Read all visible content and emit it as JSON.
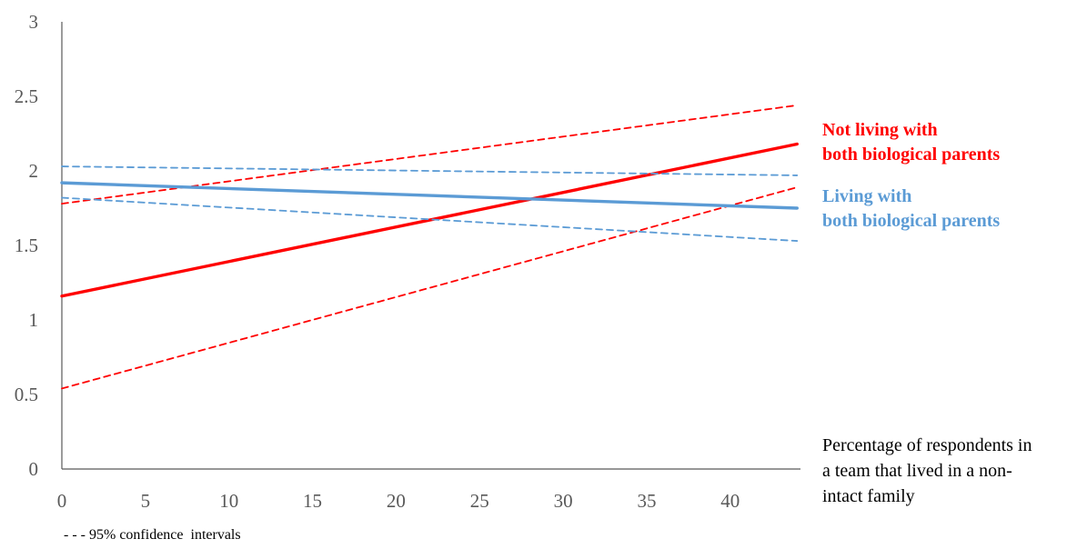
{
  "chart_data": {
    "type": "line",
    "title": "",
    "xlabel_lines": [
      "Percentage of respondents in",
      "a team that lived in a non-",
      "intact family"
    ],
    "ylabel": "",
    "xlim": [
      0,
      44
    ],
    "ylim": [
      0,
      3
    ],
    "x_ticks": [
      "0",
      "5",
      "10",
      "15",
      "20",
      "25",
      "30",
      "35",
      "40"
    ],
    "y_ticks": [
      "0",
      "0.5",
      "1",
      "1.5",
      "2",
      "2.5",
      "3"
    ],
    "grid": false,
    "colors": {
      "not_intact": "#ff0000",
      "intact": "#5b9bd5",
      "axis": "#595959"
    },
    "series": [
      {
        "key": "not_intact",
        "label_lines": [
          "Not living with",
          "both biological parents"
        ],
        "x": [
          0,
          44
        ],
        "mean": [
          1.16,
          2.18
        ],
        "ci_lower": [
          0.54,
          1.89
        ],
        "ci_upper": [
          1.78,
          2.44
        ]
      },
      {
        "key": "intact",
        "label_lines": [
          "Living with",
          "both biological parents"
        ],
        "x": [
          0,
          44
        ],
        "mean": [
          1.92,
          1.75
        ],
        "ci_lower": [
          1.82,
          1.53
        ],
        "ci_upper": [
          2.03,
          1.97
        ]
      }
    ],
    "note": "- - - 95% confidence  intervals"
  }
}
